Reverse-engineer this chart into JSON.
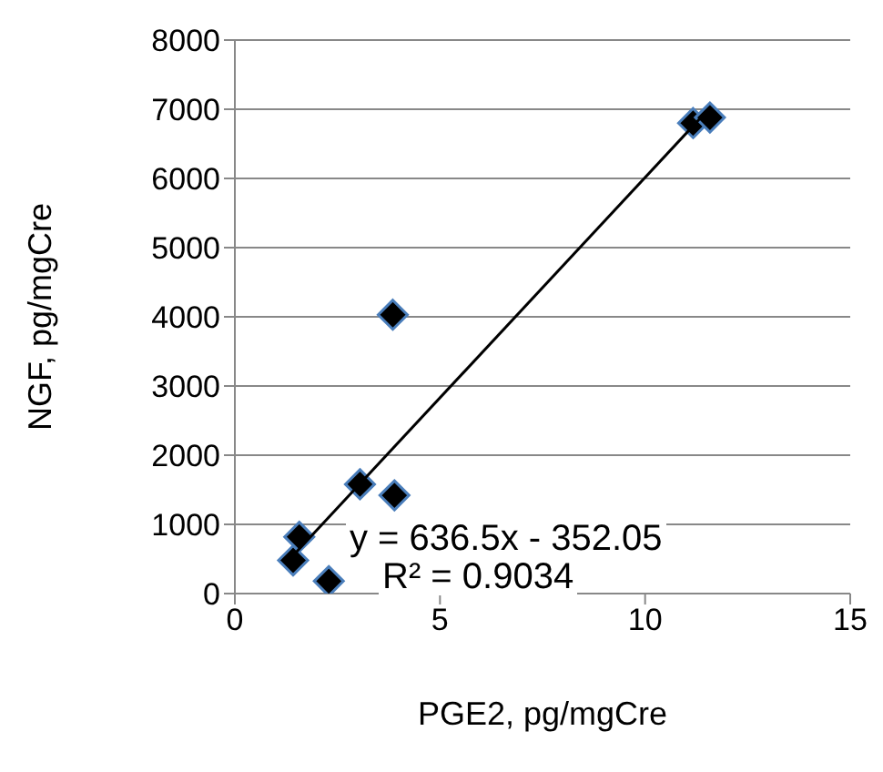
{
  "chart_data": {
    "type": "scatter",
    "xlabel": "PGE2, pg/mgCre",
    "ylabel": "NGF, pg/mgCre",
    "xlim": [
      0,
      15
    ],
    "xticks": [
      0,
      5,
      10,
      15
    ],
    "ylim": [
      0,
      8000
    ],
    "yticks": [
      0,
      1000,
      2000,
      3000,
      4000,
      5000,
      6000,
      7000,
      8000
    ],
    "grid": "y",
    "legend": false,
    "series": [
      {
        "marker": "diamond",
        "color": "#000000",
        "x": [
          11.17,
          11.58,
          3.85,
          3.05,
          3.89,
          1.57,
          1.42,
          2.29
        ],
        "values": [
          6800,
          6880,
          4030,
          1580,
          1420,
          820,
          480,
          180
        ]
      },
      {
        "type": "line",
        "marker": "none",
        "color": "#000000",
        "x": [
          1.42,
          11.58
        ],
        "values": [
          550,
          7020
        ]
      }
    ],
    "annotations": [
      "y = 636.5x - 352.05",
      "R² = 0.9034"
    ]
  }
}
